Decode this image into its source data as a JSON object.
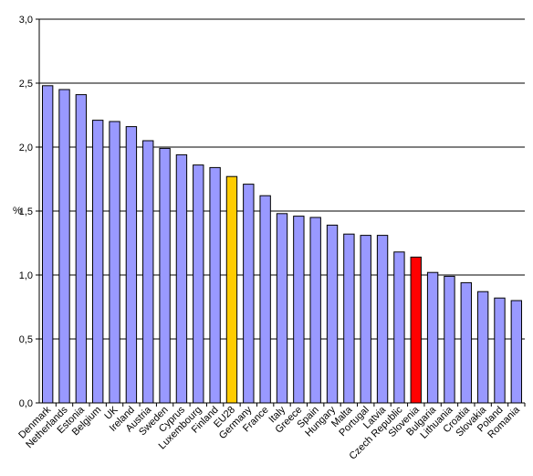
{
  "chart_data": {
    "type": "bar",
    "ylabel": "%",
    "ylim": [
      0,
      3.0
    ],
    "yticks": [
      "0,0",
      "0,5",
      "1,0",
      "1,5",
      "2,0",
      "2,5",
      "3,0"
    ],
    "grid": true,
    "colors": {
      "default": "#9999ff",
      "highlight_eu": "#ffcc00",
      "highlight_si": "#ff0000",
      "grid": "#000000",
      "border": "#000000"
    },
    "categories": [
      "Denmark",
      "Netherlands",
      "Estonia",
      "Belgium",
      "UK",
      "Ireland",
      "Austria",
      "Sweden",
      "Cyprus",
      "Luxembourg",
      "Finland",
      "EU28",
      "Germany",
      "France",
      "Italy",
      "Greece",
      "Spain",
      "Hungary",
      "Malta",
      "Portugal",
      "Latvia",
      "Czech Republic",
      "Slovenia",
      "Bulgaria",
      "Lithuania",
      "Croatia",
      "Slovakia",
      "Poland",
      "Romania"
    ],
    "values": [
      2.48,
      2.45,
      2.41,
      2.21,
      2.2,
      2.16,
      2.05,
      1.99,
      1.94,
      1.86,
      1.84,
      1.77,
      1.71,
      1.62,
      1.48,
      1.46,
      1.45,
      1.39,
      1.32,
      1.31,
      1.31,
      1.18,
      1.14,
      1.02,
      0.99,
      0.94,
      0.87,
      0.82,
      0.8
    ],
    "highlights": {
      "EU28": "highlight_eu",
      "Slovenia": "highlight_si"
    }
  }
}
